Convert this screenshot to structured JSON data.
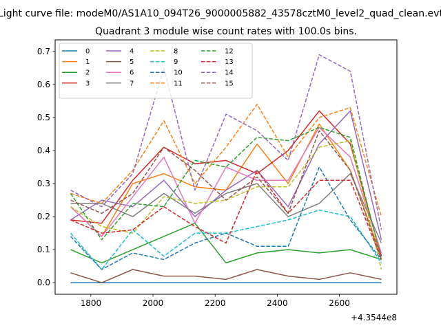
{
  "figure": {
    "suptitle": "Light curve file: modeM0/AS1A10_094T26_9000005882_43578cztM0_level2_quad_clean.evt",
    "title": "Quadrant 3 module wise count rates with 100.0s bins.",
    "x_offset_label": "+4.3544e8"
  },
  "chart_data": {
    "type": "line",
    "title": "Quadrant 3 module wise count rates with 100.0s bins.",
    "xlabel": "",
    "ylabel": "",
    "x_offset": 435440000,
    "x": [
      1735,
      1835,
      1935,
      2035,
      2135,
      2235,
      2335,
      2435,
      2535,
      2635,
      2735
    ],
    "xlim": [
      1685,
      2785
    ],
    "ylim": [
      -0.035,
      0.735
    ],
    "xticks": [
      1800,
      2000,
      2200,
      2400,
      2600
    ],
    "xtick_labels": [
      "1800",
      "2000",
      "2200",
      "2400",
      "2600"
    ],
    "yticks": [
      0.0,
      0.1,
      0.2,
      0.3,
      0.4,
      0.5,
      0.6,
      0.7
    ],
    "ytick_labels": [
      "0.0",
      "0.1",
      "0.2",
      "0.3",
      "0.4",
      "0.5",
      "0.6",
      "0.7"
    ],
    "grid": false,
    "legend": {
      "placement": "top-left",
      "columns": 4
    },
    "series": [
      {
        "name": "0",
        "color": "#1f77b4",
        "dash": "solid",
        "values": [
          0.0,
          0.0,
          0.0,
          0.0,
          0.0,
          0.0,
          0.0,
          0.0,
          0.0,
          0.0,
          0.0
        ]
      },
      {
        "name": "1",
        "color": "#ff7f0e",
        "dash": "solid",
        "values": [
          0.23,
          0.14,
          0.3,
          0.33,
          0.29,
          0.28,
          0.42,
          0.3,
          0.48,
          0.34,
          0.08
        ]
      },
      {
        "name": "2",
        "color": "#2ca02c",
        "dash": "solid",
        "values": [
          0.1,
          0.06,
          0.1,
          0.14,
          0.18,
          0.06,
          0.09,
          0.1,
          0.09,
          0.1,
          0.07
        ]
      },
      {
        "name": "3",
        "color": "#d62728",
        "dash": "solid",
        "values": [
          0.19,
          0.18,
          0.31,
          0.41,
          0.36,
          0.37,
          0.33,
          0.4,
          0.52,
          0.42,
          0.08
        ]
      },
      {
        "name": "4",
        "color": "#9467bd",
        "dash": "solid",
        "values": [
          0.19,
          0.25,
          0.23,
          0.31,
          0.2,
          0.28,
          0.34,
          0.23,
          0.42,
          0.52,
          0.13
        ]
      },
      {
        "name": "5",
        "color": "#8c564b",
        "dash": "solid",
        "values": [
          0.03,
          0.0,
          0.04,
          0.02,
          0.02,
          0.01,
          0.04,
          0.02,
          0.01,
          0.03,
          0.01
        ]
      },
      {
        "name": "6",
        "color": "#e377c2",
        "dash": "solid",
        "values": [
          0.23,
          0.14,
          0.26,
          0.38,
          0.18,
          0.35,
          0.31,
          0.31,
          0.47,
          0.38,
          0.09
        ]
      },
      {
        "name": "7",
        "color": "#7f7f7f",
        "dash": "solid",
        "values": [
          0.24,
          0.24,
          0.2,
          0.27,
          0.21,
          0.27,
          0.3,
          0.2,
          0.24,
          0.33,
          0.12
        ]
      },
      {
        "name": "8",
        "color": "#bcbd22",
        "dash": "dashed",
        "values": [
          0.23,
          0.17,
          0.15,
          0.26,
          0.24,
          0.25,
          0.29,
          0.29,
          0.41,
          0.43,
          0.04
        ]
      },
      {
        "name": "9",
        "color": "#17becf",
        "dash": "dashed",
        "values": [
          0.15,
          0.04,
          0.16,
          0.08,
          0.15,
          0.15,
          0.17,
          0.19,
          0.22,
          0.2,
          0.06
        ]
      },
      {
        "name": "10",
        "color": "#1f77b4",
        "dash": "dashed",
        "values": [
          0.14,
          0.04,
          0.09,
          0.07,
          0.12,
          0.15,
          0.11,
          0.11,
          0.35,
          0.19,
          0.07
        ]
      },
      {
        "name": "11",
        "color": "#ff7f0e",
        "dash": "dashed",
        "values": [
          0.27,
          0.24,
          0.34,
          0.49,
          0.3,
          0.41,
          0.54,
          0.38,
          0.5,
          0.53,
          0.2
        ]
      },
      {
        "name": "12",
        "color": "#2ca02c",
        "dash": "dashed",
        "values": [
          0.27,
          0.13,
          0.24,
          0.23,
          0.37,
          0.35,
          0.44,
          0.43,
          0.47,
          0.44,
          0.07
        ]
      },
      {
        "name": "13",
        "color": "#d62728",
        "dash": "dashed",
        "values": [
          0.19,
          0.15,
          0.16,
          0.23,
          0.17,
          0.12,
          0.34,
          0.21,
          0.31,
          0.31,
          0.07
        ]
      },
      {
        "name": "14",
        "color": "#9467bd",
        "dash": "dashed",
        "values": [
          0.28,
          0.23,
          0.33,
          0.65,
          0.28,
          0.51,
          0.46,
          0.37,
          0.69,
          0.64,
          0.16
        ]
      },
      {
        "name": "15",
        "color": "#8c564b",
        "dash": "dashed",
        "values": [
          0.25,
          0.21,
          0.27,
          0.41,
          0.34,
          0.25,
          0.32,
          0.21,
          0.46,
          0.34,
          0.07
        ]
      }
    ]
  }
}
